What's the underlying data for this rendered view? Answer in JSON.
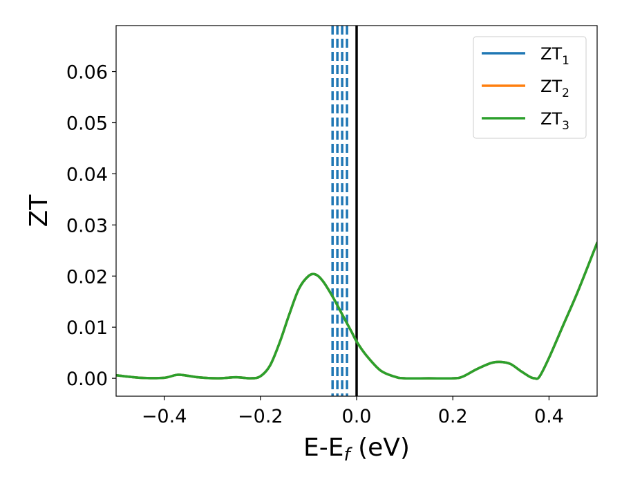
{
  "chart_data": {
    "type": "line",
    "xlabel": "E-E",
    "xlabel_sub": "f",
    "xlabel_unit": " (eV)",
    "ylabel": "ZT",
    "xlim": [
      -0.5,
      0.5
    ],
    "ylim": [
      -0.0035,
      0.069
    ],
    "xticks": [
      -0.4,
      -0.2,
      0.0,
      0.2,
      0.4
    ],
    "xtick_labels": [
      "−0.4",
      "−0.2",
      "0.0",
      "0.2",
      "0.4"
    ],
    "yticks": [
      0.0,
      0.01,
      0.02,
      0.03,
      0.04,
      0.05,
      0.06
    ],
    "ytick_labels": [
      "0.00",
      "0.01",
      "0.02",
      "0.03",
      "0.04",
      "0.05",
      "0.06"
    ],
    "legend_position": "top-right",
    "series": [
      {
        "name": "ZT",
        "name_sub": "1",
        "color": "#1f77b4",
        "x": [
          -0.5,
          -0.45,
          -0.4,
          -0.37,
          -0.33,
          -0.29,
          -0.25,
          -0.22,
          -0.2,
          -0.18,
          -0.16,
          -0.14,
          -0.12,
          -0.1,
          -0.085,
          -0.07,
          -0.05,
          -0.03,
          -0.01,
          0.0,
          0.02,
          0.05,
          0.08,
          0.1,
          0.15,
          0.2,
          0.22,
          0.25,
          0.28,
          0.3,
          0.32,
          0.34,
          0.36,
          0.37,
          0.38,
          0.4,
          0.43,
          0.46,
          0.5
        ],
        "values": [
          0.0006,
          0.0001,
          0.0001,
          0.0007,
          0.0002,
          0.0,
          0.0002,
          0.0,
          0.0004,
          0.0025,
          0.007,
          0.0125,
          0.0175,
          0.02,
          0.0203,
          0.019,
          0.016,
          0.0125,
          0.009,
          0.0072,
          0.0045,
          0.0015,
          0.0003,
          0.0,
          0.0,
          0.0,
          0.0003,
          0.0018,
          0.003,
          0.0032,
          0.0028,
          0.0015,
          0.0003,
          0.0,
          0.0003,
          0.004,
          0.0105,
          0.017,
          0.0265
        ]
      },
      {
        "name": "ZT",
        "name_sub": "2",
        "color": "#ff7f0e",
        "x": [
          -0.5,
          -0.45,
          -0.4,
          -0.37,
          -0.33,
          -0.29,
          -0.25,
          -0.22,
          -0.2,
          -0.18,
          -0.16,
          -0.14,
          -0.12,
          -0.1,
          -0.085,
          -0.07,
          -0.05,
          -0.03,
          -0.01,
          0.0,
          0.02,
          0.05,
          0.08,
          0.1,
          0.15,
          0.2,
          0.22,
          0.25,
          0.28,
          0.3,
          0.32,
          0.34,
          0.36,
          0.37,
          0.38,
          0.4,
          0.43,
          0.46,
          0.5
        ],
        "values": [
          0.0006,
          0.0001,
          0.0001,
          0.0007,
          0.0002,
          0.0,
          0.0002,
          0.0,
          0.0004,
          0.0025,
          0.007,
          0.0125,
          0.0175,
          0.02,
          0.0203,
          0.019,
          0.016,
          0.0125,
          0.009,
          0.0072,
          0.0045,
          0.0015,
          0.0003,
          0.0,
          0.0,
          0.0,
          0.0003,
          0.0018,
          0.003,
          0.0032,
          0.0028,
          0.0015,
          0.0003,
          0.0,
          0.0003,
          0.004,
          0.0105,
          0.017,
          0.0265
        ]
      },
      {
        "name": "ZT",
        "name_sub": "3",
        "color": "#2ca02c",
        "x": [
          -0.5,
          -0.45,
          -0.4,
          -0.37,
          -0.33,
          -0.29,
          -0.25,
          -0.22,
          -0.2,
          -0.18,
          -0.16,
          -0.14,
          -0.12,
          -0.1,
          -0.085,
          -0.07,
          -0.05,
          -0.03,
          -0.01,
          0.0,
          0.02,
          0.05,
          0.08,
          0.1,
          0.15,
          0.2,
          0.22,
          0.25,
          0.28,
          0.3,
          0.32,
          0.34,
          0.36,
          0.37,
          0.38,
          0.4,
          0.43,
          0.46,
          0.5
        ],
        "values": [
          0.0006,
          0.0001,
          0.0001,
          0.0007,
          0.0002,
          0.0,
          0.0002,
          0.0,
          0.0004,
          0.0025,
          0.007,
          0.0125,
          0.0175,
          0.02,
          0.0203,
          0.019,
          0.016,
          0.0125,
          0.009,
          0.0072,
          0.0045,
          0.0015,
          0.0003,
          0.0,
          0.0,
          0.0,
          0.0003,
          0.0018,
          0.003,
          0.0032,
          0.0028,
          0.0015,
          0.0003,
          0.0,
          0.0003,
          0.004,
          0.0105,
          0.017,
          0.0265
        ]
      }
    ],
    "vlines": [
      {
        "x": -0.05,
        "color": "#1f77b4",
        "style": "dashed"
      },
      {
        "x": -0.04,
        "color": "#1f77b4",
        "style": "dashed"
      },
      {
        "x": -0.03,
        "color": "#1f77b4",
        "style": "dashed"
      },
      {
        "x": -0.02,
        "color": "#1f77b4",
        "style": "dashed"
      },
      {
        "x": 0.0,
        "color": "#000000",
        "style": "solid"
      }
    ]
  }
}
